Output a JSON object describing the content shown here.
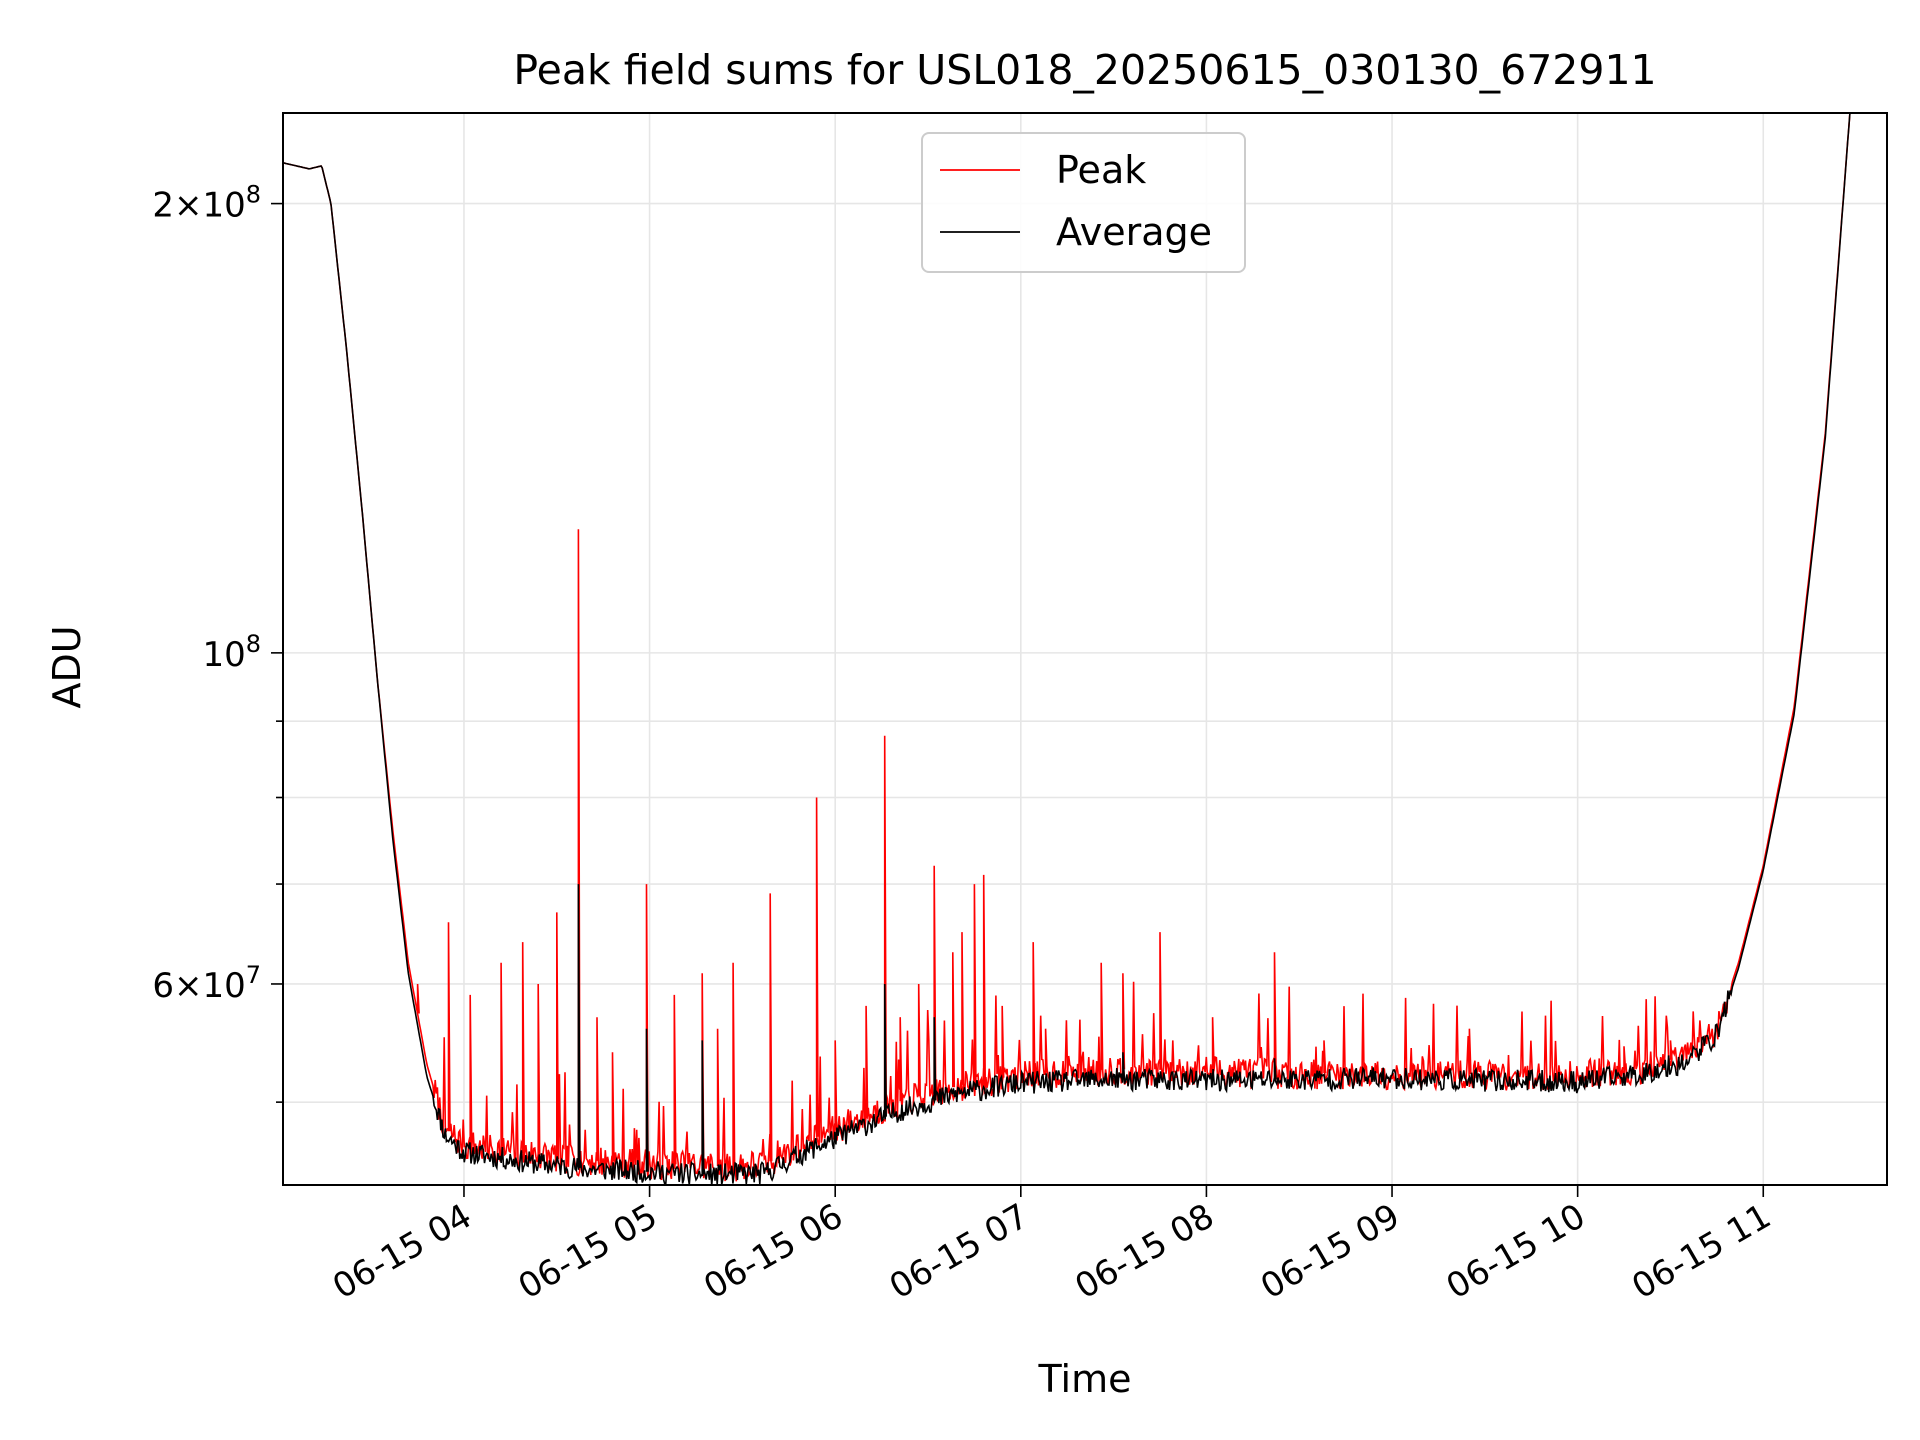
{
  "chart_data": {
    "type": "line",
    "title": "Peak field sums for USL018_20250615_030130_672911",
    "xlabel": "Time",
    "ylabel": "ADU",
    "yscale": "log",
    "xlim": [
      "2025-06-15 03:01:30",
      "2025-06-15 11:40:00"
    ],
    "ylim": [
      44000000,
      230000000
    ],
    "x_ticks": [
      {
        "value": "2025-06-15 04:00",
        "label": "06-15 04"
      },
      {
        "value": "2025-06-15 05:00",
        "label": "06-15 05"
      },
      {
        "value": "2025-06-15 06:00",
        "label": "06-15 06"
      },
      {
        "value": "2025-06-15 07:00",
        "label": "06-15 07"
      },
      {
        "value": "2025-06-15 08:00",
        "label": "06-15 08"
      },
      {
        "value": "2025-06-15 09:00",
        "label": "06-15 09"
      },
      {
        "value": "2025-06-15 10:00",
        "label": "06-15 10"
      },
      {
        "value": "2025-06-15 11:00",
        "label": "06-15 11"
      }
    ],
    "y_major_ticks": [
      {
        "value": 100000000,
        "mantissa": "",
        "exponent": "8"
      },
      {
        "value": 200000000,
        "mantissa": "2",
        "exponent": "8"
      },
      {
        "value": 60000000,
        "mantissa": "6",
        "exponent": "7"
      }
    ],
    "y_minor_ticks": [
      50000000,
      70000000,
      80000000,
      90000000
    ],
    "grid": true,
    "legend_position": "top-center",
    "series": [
      {
        "name": "Peak",
        "color": "#ff0000",
        "baseline": [
          [
            "2025-06-15 03:01:30",
            213000000
          ],
          [
            "2025-06-15 03:10",
            211000000
          ],
          [
            "2025-06-15 03:14",
            212000000
          ],
          [
            "2025-06-15 03:17",
            200000000
          ],
          [
            "2025-06-15 03:22",
            160000000
          ],
          [
            "2025-06-15 03:27",
            125000000
          ],
          [
            "2025-06-15 03:32",
            96000000
          ],
          [
            "2025-06-15 03:37",
            76000000
          ],
          [
            "2025-06-15 03:42",
            62000000
          ],
          [
            "2025-06-15 03:48",
            53000000
          ],
          [
            "2025-06-15 03:54",
            48000000
          ],
          [
            "2025-06-15 04:00",
            46800000
          ],
          [
            "2025-06-15 04:20",
            46200000
          ],
          [
            "2025-06-15 04:40",
            45700000
          ],
          [
            "2025-06-15 05:00",
            45500000
          ],
          [
            "2025-06-15 05:20",
            45300000
          ],
          [
            "2025-06-15 05:37",
            45400000
          ],
          [
            "2025-06-15 05:50",
            47000000
          ],
          [
            "2025-06-15 06:05",
            48500000
          ],
          [
            "2025-06-15 06:20",
            50000000
          ],
          [
            "2025-06-15 06:40",
            51300000
          ],
          [
            "2025-06-15 07:00",
            52200000
          ],
          [
            "2025-06-15 07:30",
            52600000
          ],
          [
            "2025-06-15 08:00",
            52500000
          ],
          [
            "2025-06-15 08:30",
            52300000
          ],
          [
            "2025-06-15 09:00",
            52300000
          ],
          [
            "2025-06-15 09:30",
            52200000
          ],
          [
            "2025-06-15 10:00",
            52200000
          ],
          [
            "2025-06-15 10:20",
            52700000
          ],
          [
            "2025-06-15 10:35",
            53700000
          ],
          [
            "2025-06-15 10:45",
            56000000
          ],
          [
            "2025-06-15 10:52",
            62000000
          ],
          [
            "2025-06-15 11:00",
            72000000
          ],
          [
            "2025-06-15 11:10",
            92000000
          ],
          [
            "2025-06-15 11:20",
            140000000
          ],
          [
            "2025-06-15 11:28",
            230000000
          ]
        ],
        "spikes": [
          [
            "2025-06-15 03:45",
            60000000
          ],
          [
            "2025-06-15 03:55",
            66000000
          ],
          [
            "2025-06-15 04:02",
            59000000
          ],
          [
            "2025-06-15 04:12",
            62000000
          ],
          [
            "2025-06-15 04:19",
            64000000
          ],
          [
            "2025-06-15 04:24",
            60000000
          ],
          [
            "2025-06-15 04:30",
            67000000
          ],
          [
            "2025-06-15 04:37",
            121000000
          ],
          [
            "2025-06-15 04:43",
            57000000
          ],
          [
            "2025-06-15 04:48",
            54000000
          ],
          [
            "2025-06-15 04:59",
            70000000
          ],
          [
            "2025-06-15 05:08",
            59000000
          ],
          [
            "2025-06-15 05:17",
            61000000
          ],
          [
            "2025-06-15 05:22",
            56000000
          ],
          [
            "2025-06-15 05:27",
            62000000
          ],
          [
            "2025-06-15 05:39",
            69000000
          ],
          [
            "2025-06-15 05:54",
            80000000
          ],
          [
            "2025-06-15 06:00",
            55000000
          ],
          [
            "2025-06-15 06:10",
            58000000
          ],
          [
            "2025-06-15 06:16",
            88000000
          ],
          [
            "2025-06-15 06:21",
            57000000
          ],
          [
            "2025-06-15 06:27",
            60000000
          ],
          [
            "2025-06-15 06:32",
            72000000
          ],
          [
            "2025-06-15 06:38",
            63000000
          ],
          [
            "2025-06-15 06:41",
            65000000
          ],
          [
            "2025-06-15 06:45",
            70000000
          ],
          [
            "2025-06-15 06:48",
            71000000
          ],
          [
            "2025-06-15 06:54",
            58000000
          ],
          [
            "2025-06-15 07:04",
            64000000
          ],
          [
            "2025-06-15 07:08",
            56000000
          ],
          [
            "2025-06-15 07:26",
            62000000
          ],
          [
            "2025-06-15 07:33",
            61000000
          ],
          [
            "2025-06-15 07:45",
            65000000
          ],
          [
            "2025-06-15 08:02",
            57000000
          ],
          [
            "2025-06-15 08:22",
            63000000
          ],
          [
            "2025-06-15 08:38",
            55000000
          ],
          [
            "2025-06-15 09:25",
            56000000
          ],
          [
            "2025-06-15 10:15",
            54500000
          ],
          [
            "2025-06-15 10:30",
            55000000
          ]
        ]
      },
      {
        "name": "Average",
        "color": "#000000",
        "baseline": [
          [
            "2025-06-15 03:01:30",
            213000000
          ],
          [
            "2025-06-15 03:10",
            211000000
          ],
          [
            "2025-06-15 03:14",
            212000000
          ],
          [
            "2025-06-15 03:17",
            200000000
          ],
          [
            "2025-06-15 03:22",
            160000000
          ],
          [
            "2025-06-15 03:27",
            125000000
          ],
          [
            "2025-06-15 03:32",
            96000000
          ],
          [
            "2025-06-15 03:37",
            75000000
          ],
          [
            "2025-06-15 03:42",
            61000000
          ],
          [
            "2025-06-15 03:48",
            52000000
          ],
          [
            "2025-06-15 03:54",
            47500000
          ],
          [
            "2025-06-15 04:00",
            46300000
          ],
          [
            "2025-06-15 04:20",
            45600000
          ],
          [
            "2025-06-15 04:40",
            45100000
          ],
          [
            "2025-06-15 05:00",
            44900000
          ],
          [
            "2025-06-15 05:20",
            44700000
          ],
          [
            "2025-06-15 05:37",
            44800000
          ],
          [
            "2025-06-15 05:50",
            46300000
          ],
          [
            "2025-06-15 06:05",
            47800000
          ],
          [
            "2025-06-15 06:20",
            49300000
          ],
          [
            "2025-06-15 06:40",
            50700000
          ],
          [
            "2025-06-15 07:00",
            51500000
          ],
          [
            "2025-06-15 07:30",
            51800000
          ],
          [
            "2025-06-15 08:00",
            51700000
          ],
          [
            "2025-06-15 08:30",
            51800000
          ],
          [
            "2025-06-15 09:00",
            51900000
          ],
          [
            "2025-06-15 09:30",
            51700000
          ],
          [
            "2025-06-15 10:00",
            51600000
          ],
          [
            "2025-06-15 10:20",
            52200000
          ],
          [
            "2025-06-15 10:35",
            53200000
          ],
          [
            "2025-06-15 10:45",
            55500000
          ],
          [
            "2025-06-15 10:52",
            61500000
          ],
          [
            "2025-06-15 11:00",
            71500000
          ],
          [
            "2025-06-15 11:10",
            91000000
          ],
          [
            "2025-06-15 11:20",
            139000000
          ],
          [
            "2025-06-15 11:28",
            230000000
          ]
        ],
        "spikes": [
          [
            "2025-06-15 04:37",
            70000000
          ],
          [
            "2025-06-15 04:59",
            56000000
          ],
          [
            "2025-06-15 05:17",
            55000000
          ],
          [
            "2025-06-15 06:16",
            60000000
          ],
          [
            "2025-06-15 06:32",
            57000000
          ],
          [
            "2025-06-15 07:33",
            54000000
          ],
          [
            "2025-06-15 08:22",
            53500000
          ]
        ]
      }
    ]
  }
}
